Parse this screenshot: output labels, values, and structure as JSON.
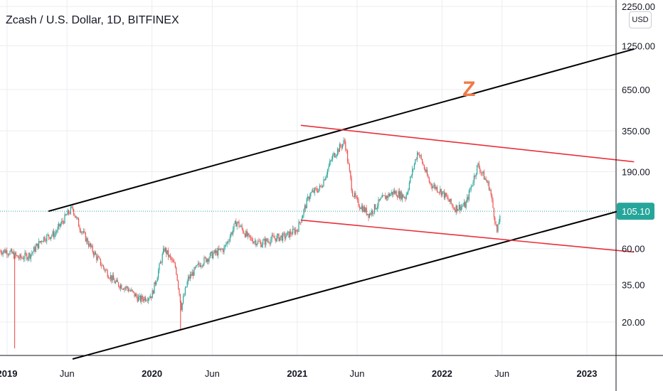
{
  "title": "Zcash / U.S. Dollar, 1D, BITFINEX",
  "currency_button": "USD",
  "colors": {
    "up": "#26a69a",
    "down": "#ef5350",
    "channel_black": "#000000",
    "channel_red": "#e8303a",
    "annotation": "#f07a47",
    "last_price_tag": "#26a69a",
    "grid": "#e9edf3"
  },
  "chart_data": {
    "type": "candlestick",
    "yscale": "log",
    "ylim": [
      12,
      2500
    ],
    "y_ticks": [
      "2250.00",
      "1250.00",
      "650.00",
      "350.00",
      "190.00",
      "105.10",
      "60.00",
      "35.00",
      "20.00"
    ],
    "x_ticks": [
      {
        "label": "2019",
        "year": true
      },
      {
        "label": "Jun",
        "year": false
      },
      {
        "label": "2020",
        "year": true
      },
      {
        "label": "Jun",
        "year": false
      },
      {
        "label": "2021",
        "year": true
      },
      {
        "label": "Jun",
        "year": false
      },
      {
        "label": "2022",
        "year": true
      },
      {
        "label": "Jun",
        "year": false
      },
      {
        "label": "2023",
        "year": true
      }
    ],
    "last_price": 105.1,
    "last_price_label": "105.10",
    "annotation": "Z",
    "approx_closes": [
      [
        "2019-01-01",
        58
      ],
      [
        "2019-02-01",
        52
      ],
      [
        "2019-03-01",
        55
      ],
      [
        "2019-04-01",
        70
      ],
      [
        "2019-05-01",
        75
      ],
      [
        "2019-06-01",
        100
      ],
      [
        "2019-06-15",
        110
      ],
      [
        "2019-07-01",
        85
      ],
      [
        "2019-08-01",
        60
      ],
      [
        "2019-09-01",
        45
      ],
      [
        "2019-10-01",
        36
      ],
      [
        "2019-11-01",
        33
      ],
      [
        "2019-12-01",
        28
      ],
      [
        "2020-01-01",
        30
      ],
      [
        "2020-02-01",
        60
      ],
      [
        "2020-03-01",
        45
      ],
      [
        "2020-03-15",
        25
      ],
      [
        "2020-04-01",
        38
      ],
      [
        "2020-05-01",
        48
      ],
      [
        "2020-06-01",
        55
      ],
      [
        "2020-07-01",
        60
      ],
      [
        "2020-08-01",
        90
      ],
      [
        "2020-09-01",
        70
      ],
      [
        "2020-10-01",
        65
      ],
      [
        "2020-11-01",
        70
      ],
      [
        "2020-12-01",
        72
      ],
      [
        "2021-01-01",
        80
      ],
      [
        "2021-02-01",
        135
      ],
      [
        "2021-03-01",
        150
      ],
      [
        "2021-04-01",
        240
      ],
      [
        "2021-05-01",
        300
      ],
      [
        "2021-05-20",
        140
      ],
      [
        "2021-06-01",
        120
      ],
      [
        "2021-07-01",
        100
      ],
      [
        "2021-08-01",
        125
      ],
      [
        "2021-09-01",
        140
      ],
      [
        "2021-10-01",
        130
      ],
      [
        "2021-11-01",
        260
      ],
      [
        "2021-12-01",
        160
      ],
      [
        "2022-01-01",
        140
      ],
      [
        "2022-02-01",
        110
      ],
      [
        "2022-03-01",
        115
      ],
      [
        "2022-04-01",
        210
      ],
      [
        "2022-05-01",
        150
      ],
      [
        "2022-05-20",
        75
      ],
      [
        "2022-05-28",
        105.1
      ]
    ],
    "spike_lows": [
      [
        "2019-01-20",
        13.5
      ],
      [
        "2020-03-13",
        18
      ]
    ],
    "trendlines": [
      {
        "name": "upper-black",
        "color": "black",
        "from": [
          "2019-04-15",
          105
        ],
        "to": [
          "2023-04-30",
          1190
        ]
      },
      {
        "name": "lower-black",
        "color": "black",
        "from": [
          "2019-06-15",
          11.5
        ],
        "to": [
          "2023-04-30",
          112
        ]
      },
      {
        "name": "upper-red",
        "color": "red",
        "from": [
          "2021-01-10",
          380
        ],
        "to": [
          "2023-04-30",
          220
        ]
      },
      {
        "name": "lower-red",
        "color": "red",
        "from": [
          "2021-01-10",
          92
        ],
        "to": [
          "2023-04-30",
          57
        ]
      }
    ]
  }
}
